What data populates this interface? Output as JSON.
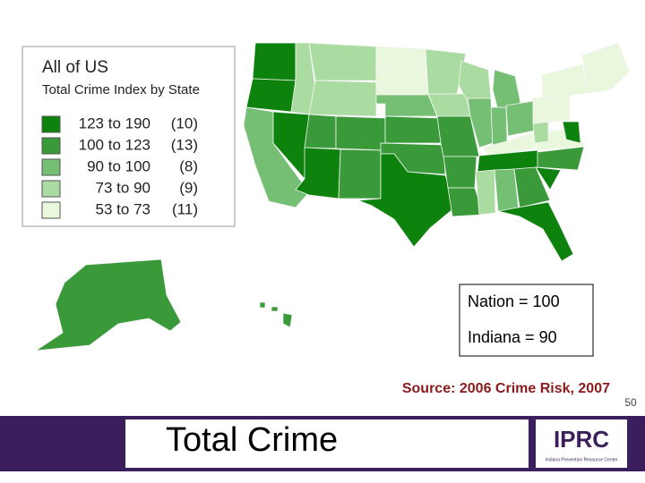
{
  "legend": {
    "title": "All of US",
    "subtitle": "Total Crime Index by State",
    "items": [
      {
        "range": "123 to 190",
        "count": "(10)",
        "color": "#0d830d"
      },
      {
        "range": "100 to 123",
        "count": "(13)",
        "color": "#3a9a3a"
      },
      {
        "range": "90 to 100",
        "count": "(8)",
        "color": "#74bf74"
      },
      {
        "range": "73 to 90",
        "count": "(9)",
        "color": "#aadba0"
      },
      {
        "range": "53 to 73",
        "count": "(11)",
        "color": "#e9f7dc"
      }
    ]
  },
  "annotations": {
    "nation": "Nation = 100",
    "indiana": "Indiana = 90"
  },
  "source": "Source: 2006 Crime Risk, 2007",
  "page_number": "50",
  "footer": {
    "title": "Total Crime",
    "logo": "IPRC",
    "logo_subtitle": "Indiana Prevention Resource Center"
  }
}
